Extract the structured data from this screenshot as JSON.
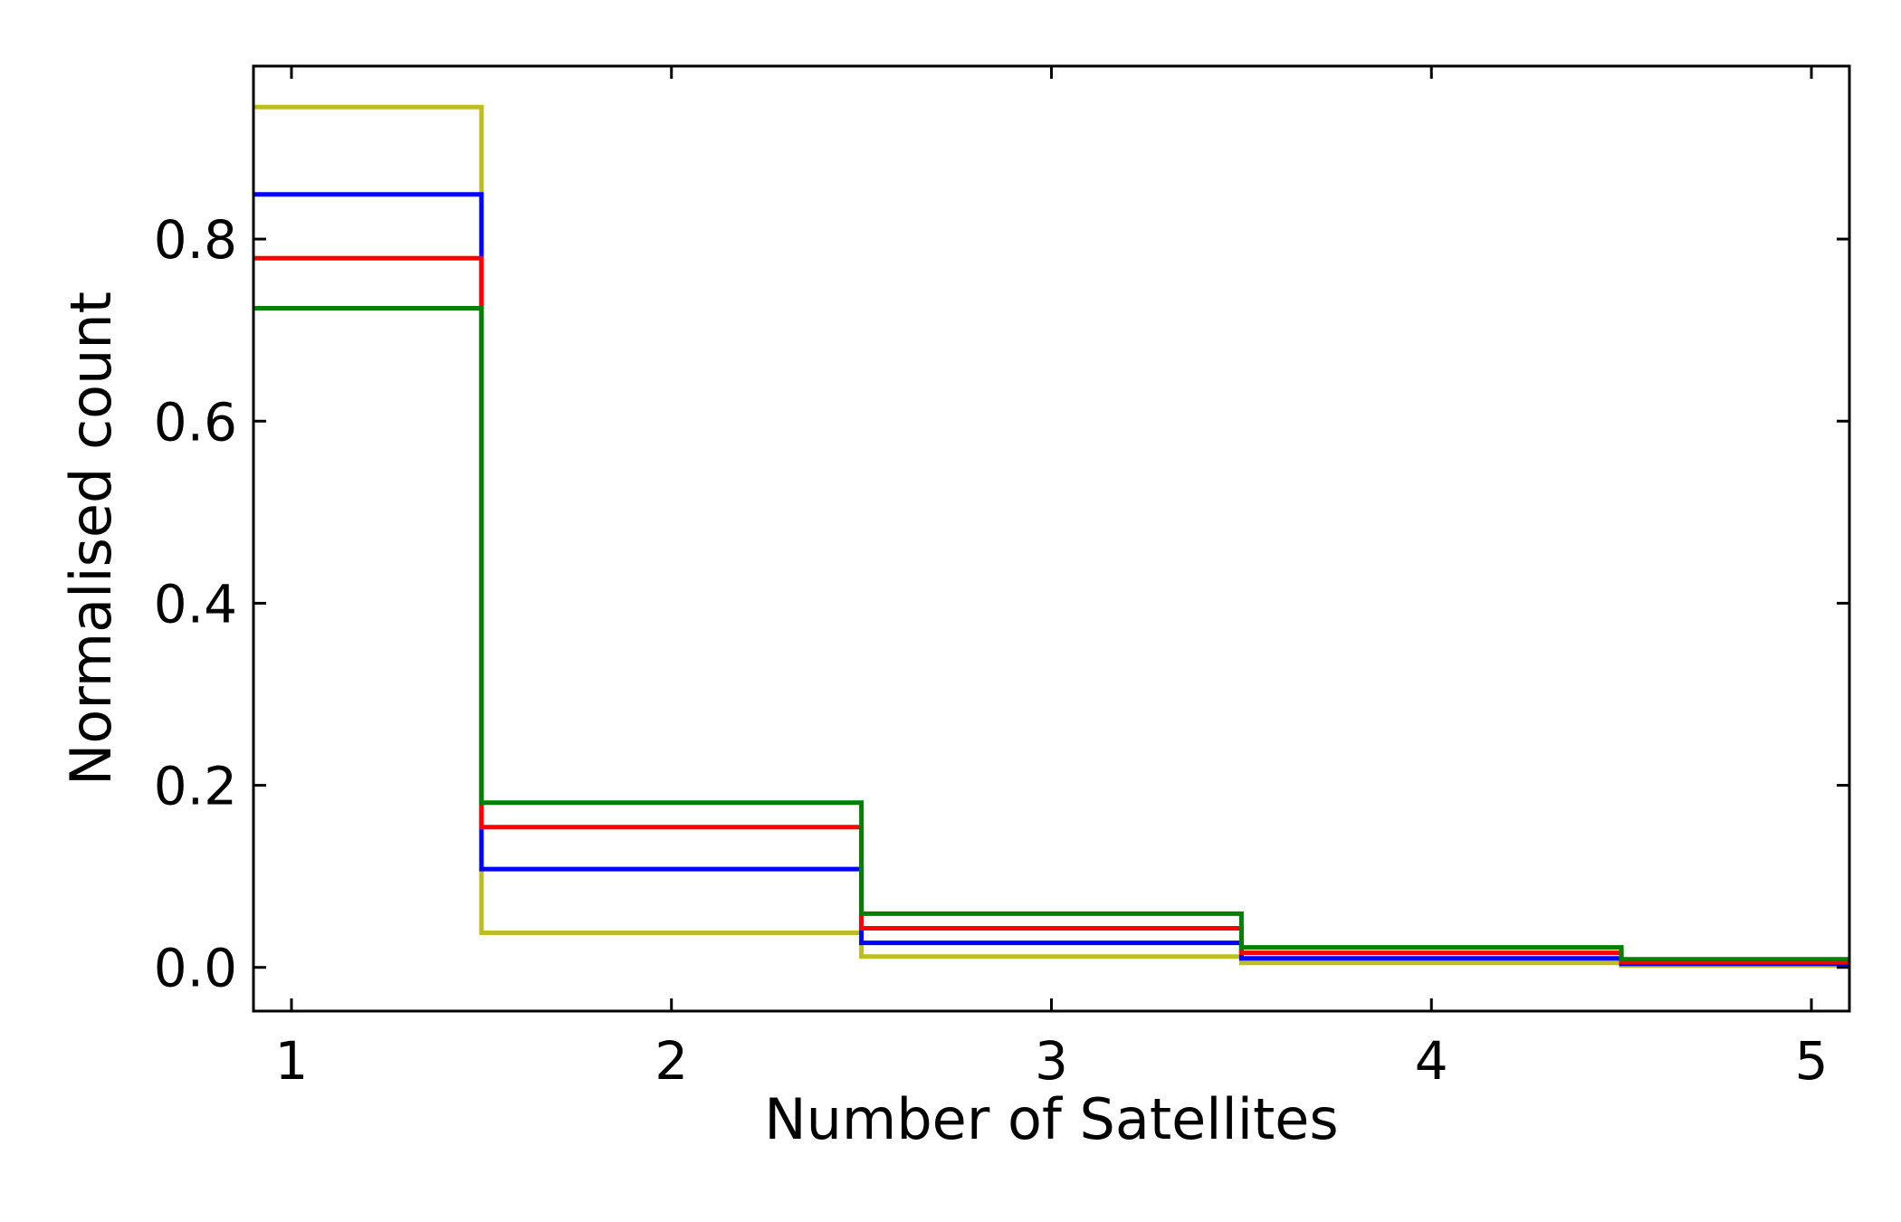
{
  "chart_data": {
    "type": "line",
    "drawstyle": "steps",
    "xlabel": "Number of Satellites",
    "ylabel": "Normalised count",
    "xlim": [
      0.9,
      5.1
    ],
    "ylim": [
      -0.048,
      0.99
    ],
    "xticks": [
      1,
      2,
      3,
      4,
      5
    ],
    "xtick_labels": [
      "1",
      "2",
      "3",
      "4",
      "5"
    ],
    "yticks": [
      0.0,
      0.2,
      0.4,
      0.6,
      0.8
    ],
    "ytick_labels": [
      "0.0",
      "0.2",
      "0.4",
      "0.6",
      "0.8"
    ],
    "grid": false,
    "legend": null,
    "bin_edges": [
      0.5,
      1.5,
      2.5,
      3.5,
      4.5,
      5.5
    ],
    "x": [
      1,
      2,
      3,
      4,
      5
    ],
    "series": [
      {
        "color": "#bcbd22",
        "values": [
          0.945,
          0.038,
          0.012,
          0.005,
          0.002
        ]
      },
      {
        "color": "#0000ff",
        "values": [
          0.849,
          0.108,
          0.027,
          0.01,
          0.004
        ]
      },
      {
        "color": "#ff0000",
        "values": [
          0.779,
          0.154,
          0.043,
          0.016,
          0.006
        ]
      },
      {
        "color": "#008000",
        "values": [
          0.724,
          0.181,
          0.059,
          0.022,
          0.009
        ]
      }
    ]
  }
}
